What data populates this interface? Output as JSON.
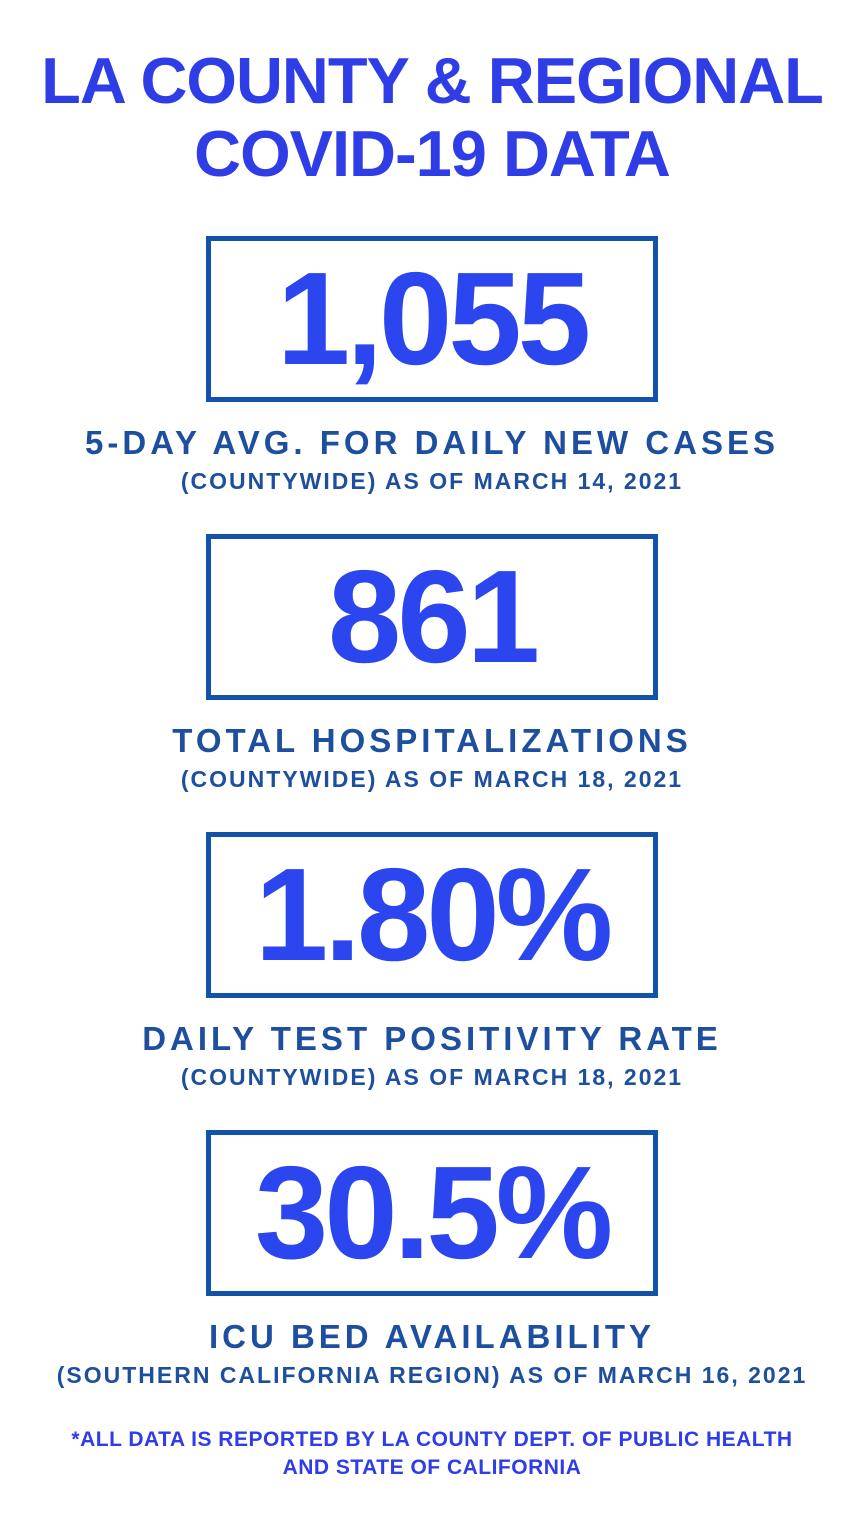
{
  "title": {
    "line1": "LA COUNTY & REGIONAL",
    "line2": "COVID-19 DATA"
  },
  "stats": [
    {
      "value": "1,055",
      "label": "5-DAY AVG. FOR DAILY NEW CASES",
      "sublabel": "(COUNTYWIDE) AS OF MARCH 14, 2021"
    },
    {
      "value": "861",
      "label": "TOTAL HOSPITALIZATIONS",
      "sublabel": "(COUNTYWIDE) AS OF MARCH 18, 2021"
    },
    {
      "value": "1.80%",
      "label": "DAILY TEST POSITIVITY RATE",
      "sublabel": "(COUNTYWIDE) AS OF MARCH 18, 2021"
    },
    {
      "value": "30.5%",
      "label": "ICU BED AVAILABILITY",
      "sublabel": "(SOUTHERN CALIFORNIA REGION) AS OF MARCH 16, 2021"
    }
  ],
  "footnote": {
    "line1": "*ALL DATA IS REPORTED BY LA COUNTY DEPT. OF PUBLIC HEALTH",
    "line2": "AND STATE OF CALIFORNIA"
  },
  "colors": {
    "title_blue": "#2e3de6",
    "value_blue": "#2b46ee",
    "label_blue": "#1d4f9e",
    "box_border_blue": "#1252a8",
    "background": "#ffffff"
  },
  "chart_data": {
    "type": "table",
    "title": "LA COUNTY & REGIONAL COVID-19 DATA",
    "columns": [
      "metric",
      "value",
      "scope",
      "as_of_date"
    ],
    "rows": [
      {
        "metric": "5-day avg. for daily new cases",
        "value": 1055,
        "display_value": "1,055",
        "scope": "Countywide",
        "as_of_date": "March 14, 2021"
      },
      {
        "metric": "Total hospitalizations",
        "value": 861,
        "display_value": "861",
        "scope": "Countywide",
        "as_of_date": "March 18, 2021"
      },
      {
        "metric": "Daily test positivity rate",
        "value": 1.8,
        "unit": "%",
        "display_value": "1.80%",
        "scope": "Countywide",
        "as_of_date": "March 18, 2021"
      },
      {
        "metric": "ICU bed availability",
        "value": 30.5,
        "unit": "%",
        "display_value": "30.5%",
        "scope": "Southern California Region",
        "as_of_date": "March 16, 2021"
      }
    ],
    "source_note": "*All data is reported by LA County Dept. of Public Health and State of California"
  }
}
